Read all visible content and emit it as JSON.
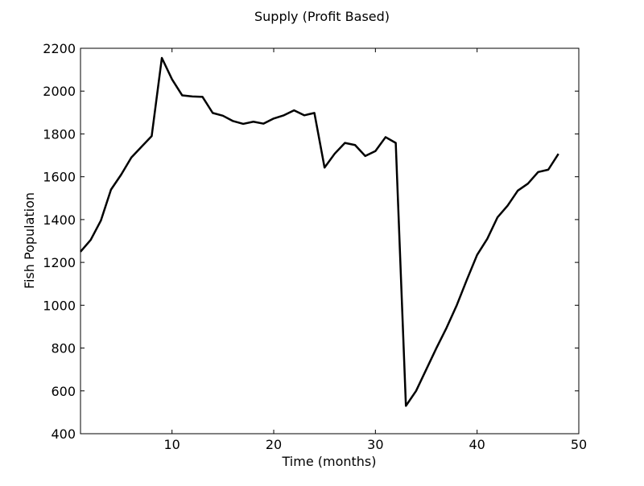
{
  "chart_data": {
    "type": "line",
    "title": "Supply (Profit Based)",
    "xlabel": "Time (months)",
    "ylabel": "Fish Population",
    "xlim": [
      1,
      50
    ],
    "ylim": [
      400,
      2200
    ],
    "xticks": [
      10,
      20,
      30,
      40,
      50
    ],
    "yticks": [
      400,
      600,
      800,
      1000,
      1200,
      1400,
      1600,
      1800,
      2000,
      2200
    ],
    "grid": false,
    "line_color": "#000000",
    "series": [
      {
        "x": [
          1,
          2,
          3,
          4,
          5,
          6,
          7,
          8,
          9,
          10,
          11,
          12,
          13,
          14,
          15,
          16,
          17,
          18,
          19,
          20,
          21,
          22,
          23,
          24,
          25,
          26,
          27,
          28,
          29,
          30,
          31,
          32,
          33,
          34,
          35,
          36,
          37,
          38,
          39,
          40,
          41,
          42,
          43,
          44,
          45,
          46,
          47,
          48
        ],
        "values": [
          1250,
          1305,
          1395,
          1540,
          1610,
          1690,
          1740,
          1790,
          2155,
          2055,
          1980,
          1975,
          1973,
          1898,
          1885,
          1860,
          1847,
          1857,
          1848,
          1872,
          1887,
          1910,
          1887,
          1898,
          1643,
          1708,
          1758,
          1748,
          1697,
          1720,
          1785,
          1758,
          530,
          600,
          700,
          800,
          895,
          1000,
          1120,
          1235,
          1310,
          1410,
          1465,
          1535,
          1568,
          1622,
          1633,
          1707
        ]
      }
    ]
  }
}
